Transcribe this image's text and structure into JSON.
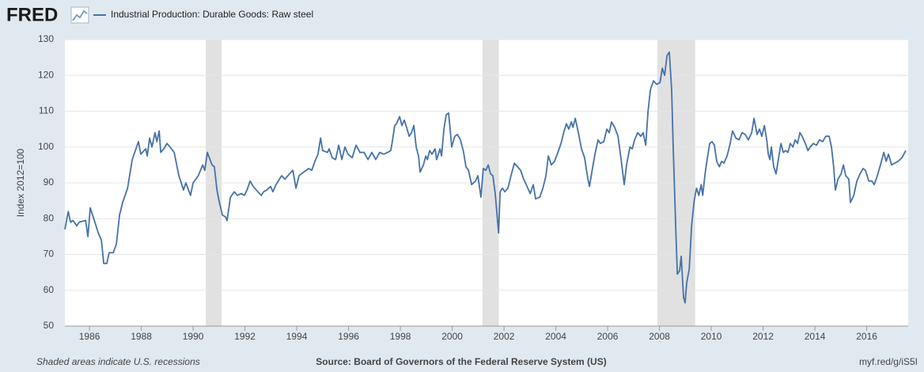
{
  "chart_data": {
    "type": "line",
    "logo": "FRED",
    "title": "Industrial Production: Durable Goods: Raw steel",
    "y_label": "Index 2012=100",
    "note": "Shaded areas indicate U.S. recessions",
    "source": "Source: Board of Governors of the Federal Reserve System (US)",
    "link": "myf.red/g/iS5I",
    "xlim": [
      1985.05,
      2017.6
    ],
    "ylim": [
      50,
      130
    ],
    "xticks": [
      1986,
      1988,
      1990,
      1992,
      1994,
      1996,
      1998,
      2000,
      2002,
      2004,
      2006,
      2008,
      2010,
      2012,
      2014,
      2016
    ],
    "yticks": [
      50,
      60,
      70,
      80,
      90,
      100,
      110,
      120,
      130
    ],
    "grid": true,
    "recessions": [
      [
        1990.49,
        1991.1
      ],
      [
        2001.17,
        2001.8
      ],
      [
        2007.92,
        2009.38
      ]
    ],
    "series": [
      {
        "name": "Industrial Production: Durable Goods: Raw steel",
        "color": "#4572a7",
        "x": [
          1985.05,
          1985.18,
          1985.27,
          1985.36,
          1985.51,
          1985.6,
          1985.85,
          1985.94,
          1986.03,
          1986.12,
          1986.21,
          1986.34,
          1986.46,
          1986.55,
          1986.67,
          1986.76,
          1986.92,
          1987.04,
          1987.16,
          1987.28,
          1987.47,
          1987.65,
          1987.89,
          1987.98,
          1988.17,
          1988.23,
          1988.32,
          1988.41,
          1988.53,
          1988.6,
          1988.69,
          1988.75,
          1988.87,
          1988.99,
          1989.11,
          1989.27,
          1989.45,
          1989.63,
          1989.72,
          1989.9,
          1990.0,
          1990.2,
          1990.37,
          1990.45,
          1990.55,
          1990.73,
          1990.82,
          1990.92,
          1991.0,
          1991.13,
          1991.25,
          1991.31,
          1991.44,
          1991.59,
          1991.71,
          1991.86,
          1991.98,
          1992.08,
          1992.2,
          1992.32,
          1992.5,
          1992.63,
          1992.72,
          1992.84,
          1992.99,
          1993.08,
          1993.2,
          1993.42,
          1993.54,
          1993.72,
          1993.85,
          1993.97,
          1994.09,
          1994.27,
          1994.46,
          1994.58,
          1994.7,
          1994.82,
          1994.92,
          1995.0,
          1995.19,
          1995.25,
          1995.37,
          1995.5,
          1995.62,
          1995.74,
          1995.86,
          1995.98,
          1996.14,
          1996.29,
          1996.44,
          1996.6,
          1996.75,
          1996.9,
          1997.05,
          1997.2,
          1997.36,
          1997.51,
          1997.63,
          1997.7,
          1997.78,
          1997.85,
          1997.97,
          1998.06,
          1998.15,
          1998.24,
          1998.34,
          1998.43,
          1998.52,
          1998.61,
          1998.7,
          1998.76,
          1998.89,
          1998.98,
          1999.04,
          1999.13,
          1999.22,
          1999.34,
          1999.4,
          1999.53,
          1999.59,
          1999.68,
          1999.77,
          1999.86,
          1999.92,
          1999.98,
          2000.1,
          2000.2,
          2000.32,
          2000.44,
          2000.53,
          2000.63,
          2000.75,
          2000.9,
          2000.99,
          2001.11,
          2001.2,
          2001.3,
          2001.39,
          2001.48,
          2001.57,
          2001.66,
          2001.72,
          2001.79,
          2001.85,
          2001.94,
          2002.03,
          2002.15,
          2002.27,
          2002.4,
          2002.52,
          2002.64,
          2002.76,
          2002.89,
          2003.01,
          2003.13,
          2003.22,
          2003.38,
          2003.5,
          2003.62,
          2003.71,
          2003.83,
          2003.95,
          2004.08,
          2004.2,
          2004.32,
          2004.41,
          2004.5,
          2004.6,
          2004.66,
          2004.75,
          2004.87,
          2004.99,
          2005.11,
          2005.24,
          2005.3,
          2005.39,
          2005.51,
          2005.63,
          2005.72,
          2005.85,
          2005.97,
          2006.06,
          2006.15,
          2006.27,
          2006.4,
          2006.52,
          2006.64,
          2006.73,
          2006.86,
          2006.95,
          2007.04,
          2007.16,
          2007.28,
          2007.37,
          2007.47,
          2007.56,
          2007.65,
          2007.77,
          2007.89,
          2008.02,
          2008.11,
          2008.2,
          2008.29,
          2008.38,
          2008.47,
          2008.53,
          2008.63,
          2008.69,
          2008.78,
          2008.84,
          2008.93,
          2008.99,
          2009.05,
          2009.15,
          2009.24,
          2009.34,
          2009.43,
          2009.52,
          2009.61,
          2009.67,
          2009.76,
          2009.85,
          2009.94,
          2010.03,
          2010.12,
          2010.21,
          2010.31,
          2010.4,
          2010.49,
          2010.61,
          2010.73,
          2010.82,
          2010.95,
          2011.07,
          2011.19,
          2011.31,
          2011.43,
          2011.56,
          2011.65,
          2011.77,
          2011.86,
          2011.95,
          2012.05,
          2012.14,
          2012.2,
          2012.26,
          2012.32,
          2012.41,
          2012.5,
          2012.6,
          2012.69,
          2012.78,
          2012.87,
          2012.96,
          2013.05,
          2013.15,
          2013.24,
          2013.33,
          2013.42,
          2013.51,
          2013.63,
          2013.73,
          2013.82,
          2013.94,
          2014.06,
          2014.18,
          2014.3,
          2014.42,
          2014.55,
          2014.64,
          2014.73,
          2014.79,
          2014.89,
          2015.01,
          2015.1,
          2015.19,
          2015.31,
          2015.37,
          2015.5,
          2015.62,
          2015.74,
          2015.86,
          2015.95,
          2016.08,
          2016.2,
          2016.29,
          2016.41,
          2016.53,
          2016.66,
          2016.75,
          2016.84,
          2016.96,
          2017.08,
          2017.21,
          2017.36,
          2017.51
        ],
        "values": [
          77,
          82,
          79,
          79.5,
          78,
          79,
          79.5,
          75,
          83,
          81,
          79,
          76,
          74,
          67.5,
          67.5,
          70.5,
          70.5,
          73,
          81,
          84.5,
          88.5,
          96.5,
          101.5,
          98,
          99.5,
          97.5,
          102.5,
          100,
          104,
          101.5,
          104.5,
          98.5,
          99.5,
          101,
          100,
          98.5,
          92,
          88,
          90,
          86.5,
          90,
          92,
          95,
          93.5,
          98.5,
          95,
          94.5,
          88,
          85,
          81,
          80.5,
          79.5,
          86,
          87.5,
          86.5,
          87,
          86.5,
          88,
          90.5,
          89,
          87.5,
          86.5,
          87.5,
          88,
          89,
          87.5,
          89.5,
          92,
          91,
          92.5,
          93.5,
          88.5,
          92,
          93,
          94,
          93.5,
          96,
          98,
          102.5,
          99,
          98.5,
          99.5,
          97,
          96.5,
          100.5,
          96.5,
          100,
          98,
          97,
          100.5,
          98.5,
          98.5,
          96.5,
          98.5,
          96.5,
          98.5,
          98,
          98.5,
          99,
          102,
          106,
          106.5,
          108.5,
          106,
          107.5,
          105.5,
          103,
          104,
          106,
          100,
          97.5,
          93,
          95,
          97.5,
          96.5,
          99,
          98,
          99.5,
          96.5,
          99.5,
          97.5,
          105,
          109,
          109.5,
          105,
          100,
          103,
          103.5,
          102,
          98.5,
          94.5,
          93.5,
          89.5,
          90.5,
          92,
          86,
          94,
          93.5,
          95,
          92.5,
          92,
          87,
          82,
          76,
          87.5,
          88.5,
          87.5,
          88.5,
          92,
          95.5,
          94.5,
          93.5,
          91,
          89,
          87,
          89.5,
          85.5,
          86,
          88.5,
          92,
          97.5,
          95,
          96,
          98.5,
          101,
          104.5,
          106.5,
          105,
          107,
          105.5,
          108,
          104,
          99.5,
          97,
          91,
          89,
          93,
          98,
          102,
          101,
          101.5,
          105,
          104,
          107,
          105.5,
          103,
          96.5,
          89.5,
          95,
          100,
          99.5,
          102,
          104,
          103,
          104,
          100.5,
          110,
          116,
          118.5,
          117.5,
          118,
          122,
          120,
          125.5,
          126.5,
          116,
          100,
          77,
          64.5,
          65.5,
          69.5,
          58,
          56.5,
          62,
          66,
          78,
          85,
          88.5,
          86.5,
          89.5,
          86.5,
          92.5,
          97,
          101,
          101.5,
          100.5,
          96,
          94.5,
          96,
          95.5,
          97.5,
          101,
          104.5,
          102.5,
          102,
          104,
          103.5,
          102,
          104,
          108,
          103.5,
          105,
          103,
          106,
          102,
          98,
          96.5,
          100,
          94.5,
          92.5,
          97,
          101,
          98.5,
          99,
          98.5,
          101,
          100,
          102,
          101,
          104,
          103,
          101,
          99,
          100,
          101,
          100.5,
          102,
          101.5,
          103,
          103,
          100,
          94,
          88,
          91,
          92.5,
          95,
          92,
          91,
          84.5,
          86.5,
          90.5,
          92.5,
          94,
          93.5,
          90.5,
          90.5,
          89.5,
          92,
          95,
          98.5,
          96,
          98,
          95,
          95.5,
          96,
          97,
          99
        ]
      }
    ]
  }
}
